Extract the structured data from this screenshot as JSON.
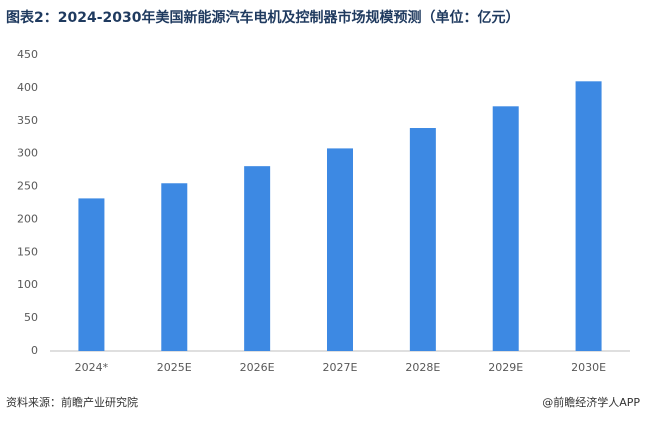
{
  "chart_data": {
    "type": "bar",
    "title": "图表2：2024-2030年美国新能源汽车电机及控制器市场规模预测（单位：亿元）",
    "categories": [
      "2024*",
      "2025E",
      "2026E",
      "2027E",
      "2028E",
      "2029E",
      "2030E"
    ],
    "values": [
      232,
      255,
      281,
      308,
      339,
      372,
      410
    ],
    "color": "#3d89e3",
    "ylim": [
      0,
      450
    ],
    "yticks": [
      0,
      50,
      100,
      150,
      200,
      250,
      300,
      350,
      400,
      450
    ],
    "grid": false,
    "source": "资料来源：前瞻产业研究院",
    "credit": "@前瞻经济学人APP"
  }
}
